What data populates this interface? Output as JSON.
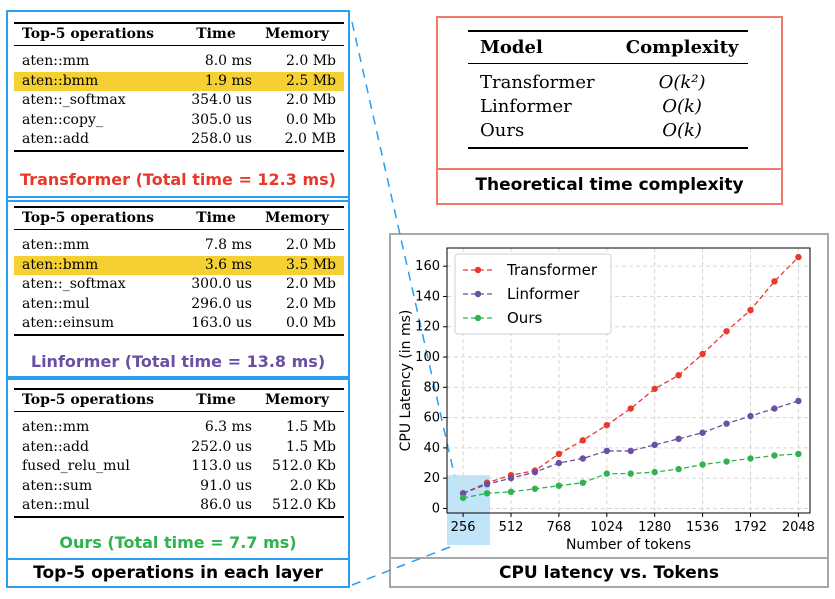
{
  "colors": {
    "transformer": "#e8392b",
    "linformer": "#6a4fa3",
    "ours": "#2fb34e",
    "highlight": "#f5d033",
    "frame_blue": "#2a9ef0"
  },
  "ops_headers": {
    "op": "Top-5 operations",
    "time": "Time",
    "memory": "Memory"
  },
  "tables": [
    {
      "caption": "Transformer (Total time = 12.3 ms)",
      "rows": [
        {
          "op": "aten::mm",
          "time": "8.0 ms",
          "memory": "2.0 Mb"
        },
        {
          "op": "aten::bmm",
          "time": "1.9 ms",
          "memory": "2.5 Mb"
        },
        {
          "op": "aten::_softmax",
          "time": "354.0 us",
          "memory": "2.0 Mb"
        },
        {
          "op": "aten::copy_",
          "time": "305.0 us",
          "memory": "0.0 Mb"
        },
        {
          "op": "aten::add",
          "time": "258.0 us",
          "memory": "2.0 MB"
        }
      ]
    },
    {
      "caption": "Linformer (Total time = 13.8 ms)",
      "rows": [
        {
          "op": "aten::mm",
          "time": "7.8 ms",
          "memory": "2.0 Mb"
        },
        {
          "op": "aten::bmm",
          "time": "3.6 ms",
          "memory": "3.5 Mb"
        },
        {
          "op": "aten::_softmax",
          "time": "300.0 us",
          "memory": "2.0 Mb"
        },
        {
          "op": "aten::mul",
          "time": "296.0 us",
          "memory": "2.0 Mb"
        },
        {
          "op": "aten::einsum",
          "time": "163.0 us",
          "memory": "0.0 Mb"
        }
      ]
    },
    {
      "caption": "Ours (Total time = 7.7 ms)",
      "rows": [
        {
          "op": "aten::mm",
          "time": "6.3 ms",
          "memory": "1.5 Mb"
        },
        {
          "op": "aten::add",
          "time": "252.0 us",
          "memory": "1.5 Mb"
        },
        {
          "op": "fused_relu_mul",
          "time": "113.0 us",
          "memory": "512.0 Kb"
        },
        {
          "op": "aten::sum",
          "time": "91.0 us",
          "memory": "2.0 Kb"
        },
        {
          "op": "aten::mul",
          "time": "86.0 us",
          "memory": "512.0 Kb"
        }
      ]
    }
  ],
  "left_caption": "Top-5 operations in each layer",
  "complexity": {
    "headers": {
      "model": "Model",
      "complexity": "Complexity"
    },
    "rows": [
      {
        "model": "Transformer",
        "complexity": "O(k²)"
      },
      {
        "model": "Linformer",
        "complexity": "O(k)"
      },
      {
        "model": "Ours",
        "complexity": "O(k)"
      }
    ],
    "caption": "Theoretical time complexity"
  },
  "chart_caption": "CPU latency vs. Tokens",
  "chart_data": {
    "type": "line",
    "title": "",
    "xlabel": "Number of tokens",
    "ylabel": "CPU Latency (in ms)",
    "x": [
      256,
      384,
      512,
      640,
      768,
      896,
      1024,
      1152,
      1280,
      1408,
      1536,
      1664,
      1792,
      1920,
      2048
    ],
    "xticks": [
      256,
      512,
      768,
      1024,
      1280,
      1536,
      1792,
      2048
    ],
    "yticks": [
      0,
      20,
      40,
      60,
      80,
      100,
      120,
      140,
      160
    ],
    "xlim": [
      170,
      2110
    ],
    "ylim": [
      -3,
      172
    ],
    "grid": true,
    "legend": "top-left",
    "series": [
      {
        "name": "Transformer",
        "values": [
          10,
          17,
          22,
          25,
          36,
          45,
          55,
          66,
          79,
          88,
          102,
          117,
          131,
          150,
          166
        ]
      },
      {
        "name": "Linformer",
        "values": [
          10,
          16,
          20,
          24,
          30,
          33,
          38,
          38,
          42,
          46,
          50,
          56,
          61,
          66,
          71
        ]
      },
      {
        "name": "Ours",
        "values": [
          7,
          10,
          11,
          13,
          15,
          17,
          23,
          23,
          24,
          26,
          29,
          31,
          33,
          35,
          36
        ]
      }
    ]
  }
}
